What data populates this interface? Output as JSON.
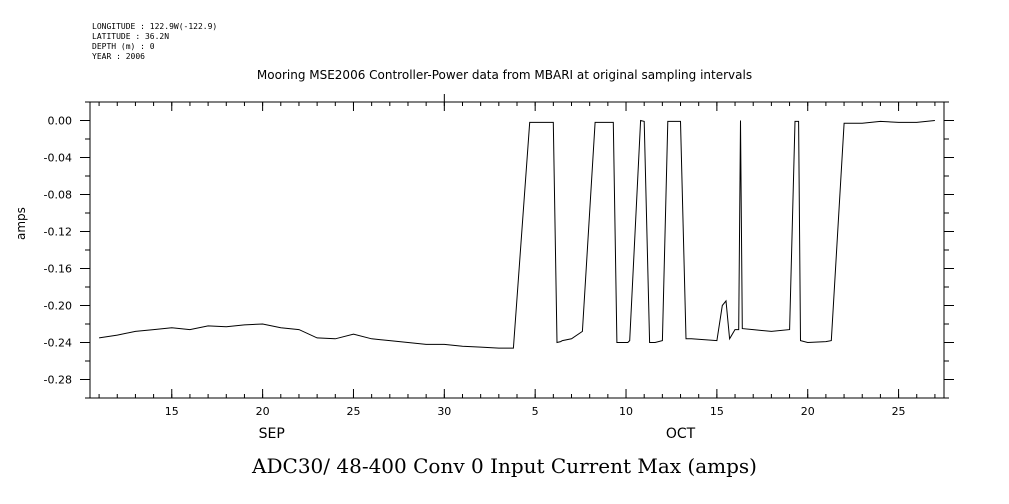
{
  "header": {
    "longitude": "LONGITUDE : 122.9W(-122.9)",
    "latitude": "LATITUDE : 36.2N",
    "depth": "DEPTH (m) : 0",
    "year": "YEAR : 2006"
  },
  "caption": "ADC30/ 48-400 Conv 0 Input Current  Max (amps)",
  "chart_data": {
    "type": "line",
    "title": "Mooring MSE2006 Controller-Power data from MBARI at original sampling intervals",
    "xlabel": "",
    "ylabel": "amps",
    "xlim": [
      10.5,
      57.5
    ],
    "ylim": [
      -0.3,
      0.02
    ],
    "x_ticks": [
      {
        "x": 15,
        "label": "15"
      },
      {
        "x": 20,
        "label": "20"
      },
      {
        "x": 25,
        "label": "25"
      },
      {
        "x": 30,
        "label": "30"
      },
      {
        "x": 35,
        "label": "5"
      },
      {
        "x": 40,
        "label": "10"
      },
      {
        "x": 45,
        "label": "15"
      },
      {
        "x": 50,
        "label": "20"
      },
      {
        "x": 55,
        "label": "25"
      }
    ],
    "month_labels": [
      {
        "x": 20.5,
        "label": "SEP"
      },
      {
        "x": 43,
        "label": "OCT"
      }
    ],
    "y_ticks": [
      0.0,
      -0.04,
      -0.08,
      -0.12,
      -0.16,
      -0.2,
      -0.24,
      -0.28
    ],
    "y_tick_labels": [
      "0.00",
      "-0.04",
      "-0.08",
      "-0.12",
      "-0.16",
      "-0.20",
      "-0.24",
      "-0.28"
    ],
    "series": [
      {
        "name": "",
        "color": "#000000",
        "x": [
          11.0,
          12.0,
          13.0,
          14.0,
          15.0,
          16.0,
          17.0,
          18.0,
          19.0,
          20.0,
          21.0,
          22.0,
          23.0,
          24.0,
          25.0,
          26.0,
          27.0,
          28.0,
          29.0,
          30.0,
          31.0,
          32.0,
          33.0,
          33.8,
          34.7,
          35.8,
          36.0,
          36.2,
          36.4,
          36.5,
          37.0,
          37.6,
          38.3,
          38.5,
          39.0,
          39.3,
          39.5,
          39.7,
          40.1,
          40.2,
          40.8,
          41.0,
          41.3,
          41.6,
          42.0,
          42.3,
          43.0,
          43.3,
          43.6,
          45.0,
          45.3,
          45.5,
          45.7,
          46.0,
          46.2,
          46.3,
          46.4,
          47.0,
          48.0,
          49.0,
          49.3,
          49.5,
          49.6,
          50.0,
          51.0,
          51.3,
          52.0,
          53.0,
          54.0,
          55.0,
          56.0,
          57.0
        ],
        "y": [
          -0.235,
          -0.232,
          -0.228,
          -0.226,
          -0.224,
          -0.226,
          -0.222,
          -0.223,
          -0.221,
          -0.22,
          -0.224,
          -0.226,
          -0.235,
          -0.236,
          -0.231,
          -0.236,
          -0.238,
          -0.24,
          -0.242,
          -0.242,
          -0.244,
          -0.245,
          -0.246,
          -0.246,
          -0.002,
          -0.002,
          -0.002,
          -0.24,
          -0.239,
          -0.238,
          -0.236,
          -0.228,
          -0.002,
          -0.002,
          -0.002,
          -0.002,
          -0.24,
          -0.24,
          -0.24,
          -0.238,
          0.0,
          -0.001,
          -0.24,
          -0.24,
          -0.238,
          -0.001,
          -0.001,
          -0.236,
          -0.236,
          -0.238,
          -0.2,
          -0.195,
          -0.236,
          -0.226,
          -0.226,
          0.0,
          -0.225,
          -0.226,
          -0.228,
          -0.226,
          -0.001,
          -0.001,
          -0.238,
          -0.24,
          -0.239,
          -0.238,
          -0.003,
          -0.003,
          -0.001,
          -0.002,
          -0.002,
          0.0
        ]
      }
    ],
    "grid": false,
    "legend": "none"
  }
}
